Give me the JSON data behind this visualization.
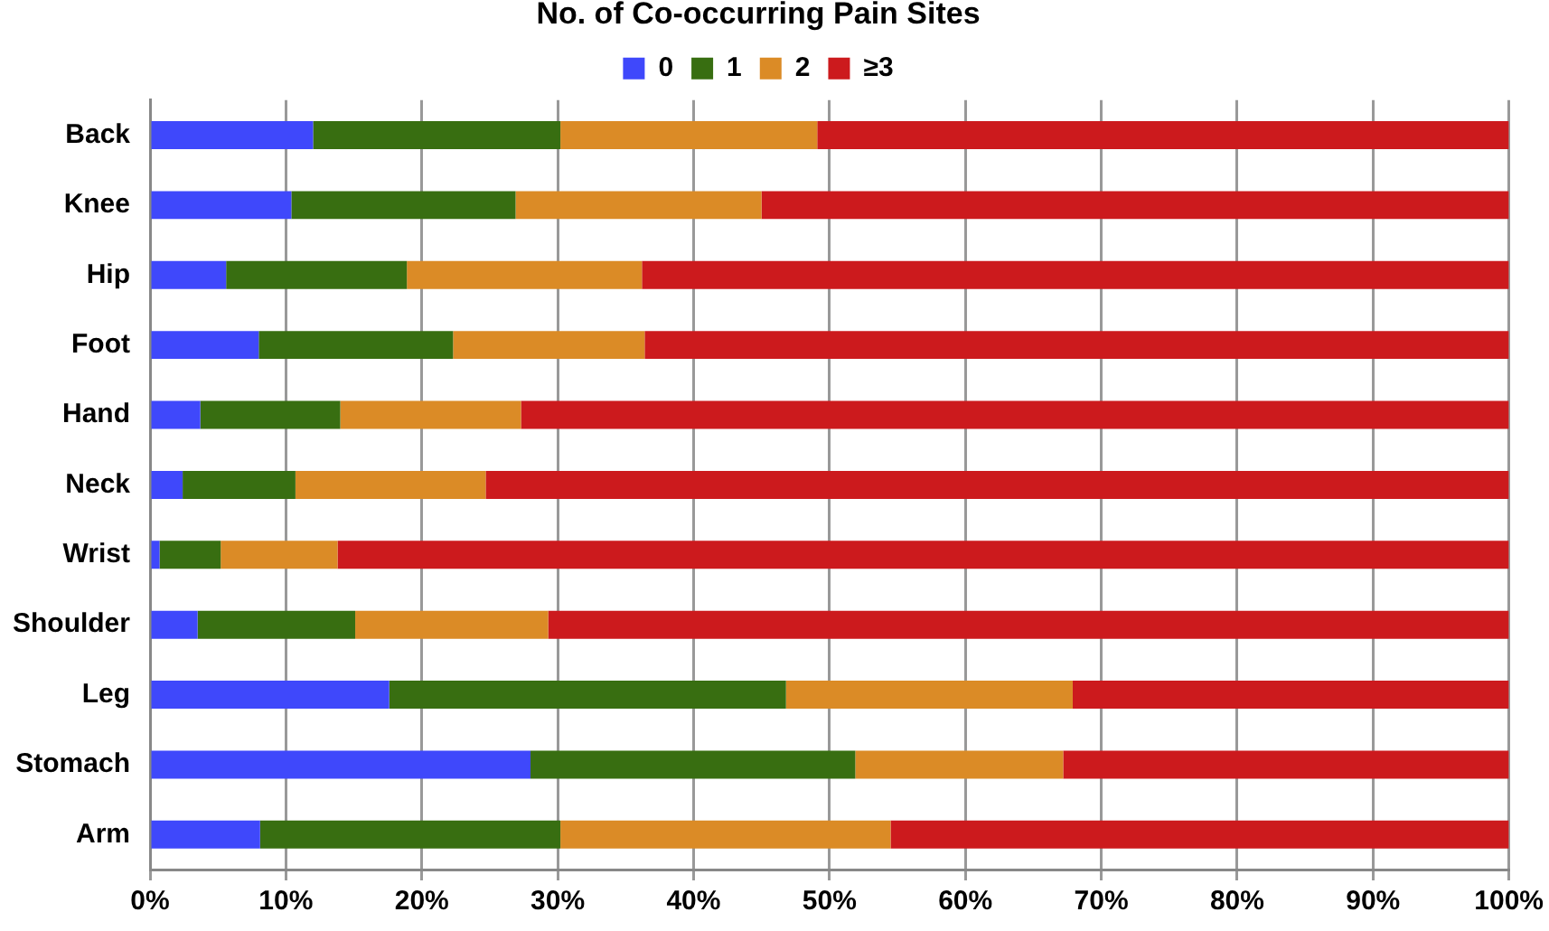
{
  "chart_data": {
    "type": "bar",
    "orientation": "horizontal",
    "stacked": true,
    "legend_title": "No. of Co-occurring Pain Sites",
    "legend": "top",
    "categories": [
      "Back",
      "Knee",
      "Hip",
      "Foot",
      "Hand",
      "Neck",
      "Wrist",
      "Shoulder",
      "Leg",
      "Stomach",
      "Arm"
    ],
    "series": [
      {
        "name": "0",
        "color": "#3f48fb",
        "values": [
          12,
          10.4,
          5.6,
          8,
          3.7,
          2.4,
          0.7,
          3.5,
          17.6,
          28,
          8.1
        ]
      },
      {
        "name": "1",
        "color": "#386e11",
        "values": [
          18.2,
          16.5,
          13.3,
          14.3,
          10.3,
          8.3,
          4.5,
          11.6,
          29.2,
          23.9,
          22.1
        ]
      },
      {
        "name": "2",
        "color": "#db8b26",
        "values": [
          18.9,
          18.1,
          17.3,
          14.1,
          13.3,
          14,
          8.6,
          14.2,
          21.1,
          15.3,
          24.3
        ]
      },
      {
        "name": "≥3",
        "color": "#cc1a1d",
        "values": [
          50.9,
          55,
          63.8,
          63.6,
          72.7,
          75.3,
          86.2,
          70.7,
          32.1,
          32.8,
          45.5
        ]
      }
    ],
    "xlim": [
      0,
      100
    ],
    "xticks": [
      {
        "value": 0,
        "label": "0%"
      },
      {
        "value": 10,
        "label": "10%"
      },
      {
        "value": 20,
        "label": "20%"
      },
      {
        "value": 30,
        "label": "30%"
      },
      {
        "value": 40,
        "label": "40%"
      },
      {
        "value": 50,
        "label": "50%"
      },
      {
        "value": 60,
        "label": "60%"
      },
      {
        "value": 70,
        "label": "70%"
      },
      {
        "value": 80,
        "label": "80%"
      },
      {
        "value": 90,
        "label": "90%"
      },
      {
        "value": 100,
        "label": "100%"
      }
    ],
    "grid": "x"
  }
}
